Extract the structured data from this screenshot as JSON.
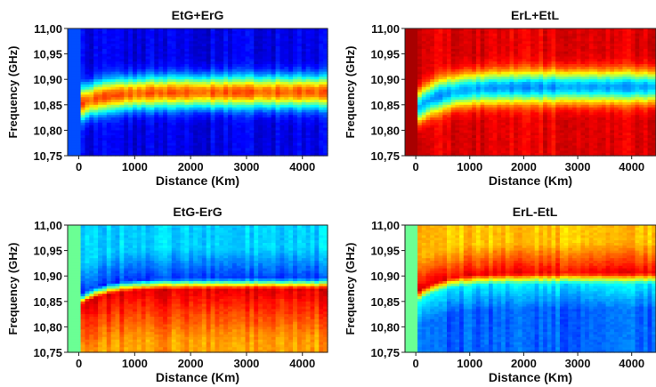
{
  "chart_data": [
    {
      "type": "heatmap",
      "title": "EtG+ErG",
      "xlabel": "Distance (Km)",
      "ylabel": "Frequency (GHz)",
      "xlim": [
        -200,
        4450
      ],
      "ylim": [
        10.75,
        11.0
      ],
      "xticks": [
        0,
        1000,
        2000,
        3000,
        4000
      ],
      "yticks": [
        10.75,
        10.8,
        10.85,
        10.9,
        10.95,
        11.0
      ],
      "xtick_labels": [
        "0",
        "1000",
        "2000",
        "3000",
        "4000"
      ],
      "ytick_labels": [
        "10,75",
        "10,80",
        "10,85",
        "10,90",
        "10,95",
        "11,00"
      ],
      "colormap": "jet",
      "background_level": 0.1,
      "peak_level": 0.78,
      "peak_frequency_start": 10.85,
      "peak_frequency_end": 10.875,
      "band_halfwidth_ghz": 0.03,
      "noise_amplitude": 0.08
    },
    {
      "type": "heatmap",
      "title": "ErL+EtL",
      "xlabel": "Distance (Km)",
      "ylabel": "Frequency (GHz)",
      "xlim": [
        -200,
        4450
      ],
      "ylim": [
        10.75,
        11.0
      ],
      "xticks": [
        0,
        1000,
        2000,
        3000,
        4000
      ],
      "yticks": [
        10.75,
        10.8,
        10.85,
        10.9,
        10.95,
        11.0
      ],
      "xtick_labels": [
        "0",
        "1000",
        "2000",
        "3000",
        "4000"
      ],
      "ytick_labels": [
        "10,75",
        "10,80",
        "10,85",
        "10,90",
        "10,95",
        "11,00"
      ],
      "colormap": "jet",
      "background_level": 0.9,
      "peak_level": 0.28,
      "peak_frequency_start": 10.84,
      "peak_frequency_end": 10.885,
      "band_halfwidth_ghz": 0.03,
      "noise_amplitude": 0.08
    },
    {
      "type": "heatmap",
      "title": "EtG-ErG",
      "xlabel": "Distance (Km)",
      "ylabel": "Frequency (GHz)",
      "xlim": [
        -200,
        4450
      ],
      "ylim": [
        10.75,
        11.0
      ],
      "xticks": [
        0,
        1000,
        2000,
        3000,
        4000
      ],
      "yticks": [
        10.75,
        10.8,
        10.85,
        10.9,
        10.95,
        11.0
      ],
      "xtick_labels": [
        "0",
        "1000",
        "2000",
        "3000",
        "4000"
      ],
      "ytick_labels": [
        "10,75",
        "10,80",
        "10,85",
        "10,90",
        "10,95",
        "11,00"
      ],
      "colormap": "jet",
      "upper_level": 0.33,
      "trough_level": 0.18,
      "lower_peak_level": 0.9,
      "bottom_level": 0.72,
      "edge_frequency_start": 10.84,
      "edge_frequency_end": 10.875,
      "noise_amplitude": 0.08
    },
    {
      "type": "heatmap",
      "title": "ErL-EtL",
      "xlabel": "Distance (Km)",
      "ylabel": "Frequency (GHz)",
      "xlim": [
        -200,
        4450
      ],
      "ylim": [
        10.75,
        11.0
      ],
      "xticks": [
        0,
        1000,
        2000,
        3000,
        4000
      ],
      "yticks": [
        10.75,
        10.8,
        10.85,
        10.9,
        10.95,
        11.0
      ],
      "xtick_labels": [
        "0",
        "1000",
        "2000",
        "3000",
        "4000"
      ],
      "ytick_labels": [
        "10,75",
        "10,80",
        "10,85",
        "10,90",
        "10,95",
        "11,00"
      ],
      "colormap": "jet",
      "upper_level": 0.68,
      "peak_level": 0.88,
      "trough_level": 0.36,
      "bottom_level": 0.22,
      "edge_frequency_start": 10.845,
      "edge_frequency_end": 10.885,
      "noise_amplitude": 0.08
    }
  ]
}
